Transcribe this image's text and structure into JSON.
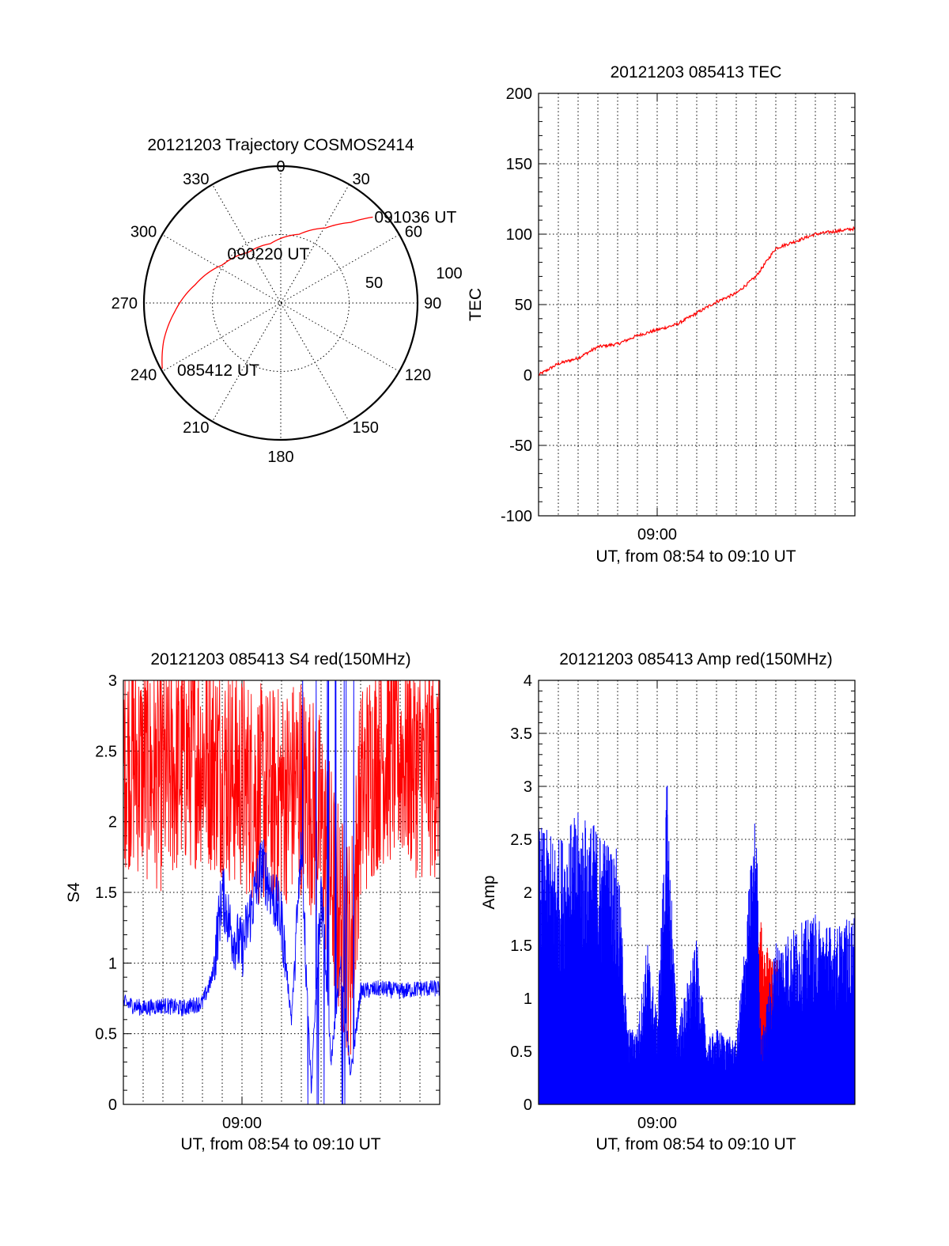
{
  "colors": {
    "red": "#ff0000",
    "blue": "#0000ff",
    "axis": "#000000",
    "background": "#ffffff"
  },
  "chart_data": [
    {
      "type": "polar",
      "title": "20121203 Trajectory COSMOS2414",
      "azimuth_labels": [
        "0",
        "30",
        "60",
        "90",
        "120",
        "150",
        "180",
        "210",
        "240",
        "270",
        "300",
        "330"
      ],
      "elevation_labels": [
        "50",
        "100"
      ],
      "series": [
        {
          "color": "red",
          "points": [
            {
              "az": 241,
              "r": 99
            },
            {
              "az": 252,
              "r": 90
            },
            {
              "az": 265,
              "r": 78
            },
            {
              "az": 282,
              "r": 64
            },
            {
              "az": 303,
              "r": 51
            },
            {
              "az": 327,
              "r": 44
            },
            {
              "az": 350,
              "r": 44
            },
            {
              "az": 15,
              "r": 52
            },
            {
              "az": 31,
              "r": 64
            },
            {
              "az": 41,
              "r": 78
            },
            {
              "az": 47,
              "r": 92
            }
          ]
        }
      ],
      "annotations": [
        {
          "text": "091036 UT",
          "az": 47,
          "r": 92
        },
        {
          "text": "090220 UT",
          "az": 353,
          "r": 36
        },
        {
          "text": "085412 UT",
          "az": 241,
          "r": 99
        }
      ]
    },
    {
      "type": "line",
      "title": "20121203 085413 TEC",
      "ylabel": "TEC",
      "xlabel": "UT, from 08:54 to 09:10 UT",
      "xlim": [
        "08:54",
        "09:10"
      ],
      "ylim": [
        -100,
        200
      ],
      "yticks": [
        "-100",
        "-50",
        "0",
        "50",
        "100",
        "150",
        "200"
      ],
      "xticks": [
        {
          "value": "09:00",
          "label": "09:00"
        }
      ],
      "grid": true,
      "series": [
        {
          "color": "red",
          "points": [
            {
              "t": "08:54:00",
              "y": 0
            },
            {
              "t": "08:55:00",
              "y": 8
            },
            {
              "t": "08:56:00",
              "y": 12
            },
            {
              "t": "08:57:00",
              "y": 20
            },
            {
              "t": "08:58:00",
              "y": 22
            },
            {
              "t": "08:59:00",
              "y": 28
            },
            {
              "t": "09:00:00",
              "y": 32
            },
            {
              "t": "09:01:00",
              "y": 36
            },
            {
              "t": "09:02:00",
              "y": 44
            },
            {
              "t": "09:03:00",
              "y": 52
            },
            {
              "t": "09:04:00",
              "y": 58
            },
            {
              "t": "09:05:00",
              "y": 70
            },
            {
              "t": "09:06:00",
              "y": 90
            },
            {
              "t": "09:07:00",
              "y": 95
            },
            {
              "t": "09:08:00",
              "y": 100
            },
            {
              "t": "09:09:00",
              "y": 102
            },
            {
              "t": "09:10:00",
              "y": 104
            }
          ]
        }
      ]
    },
    {
      "type": "line",
      "title": "20121203 085413 S4 red(150MHz)",
      "ylabel": "S4",
      "xlabel": "UT, from 08:54 to 09:10 UT",
      "xlim": [
        "08:54",
        "09:10"
      ],
      "ylim": [
        0,
        3
      ],
      "yticks": [
        "0",
        "0.5",
        "1",
        "1.5",
        "2",
        "2.5",
        "3"
      ],
      "xticks": [
        {
          "value": "09:00",
          "label": "09:00"
        }
      ],
      "grid": true,
      "series": [
        {
          "color": "red",
          "points": [
            {
              "t": "08:54:00",
              "y": 2.4
            },
            {
              "t": "08:55:00",
              "y": 2.3
            },
            {
              "t": "08:56:00",
              "y": 2.2
            },
            {
              "t": "08:57:00",
              "y": 2.35
            },
            {
              "t": "08:58:00",
              "y": 2.4
            },
            {
              "t": "08:59:00",
              "y": 2.3
            },
            {
              "t": "09:00:00",
              "y": 2.2
            },
            {
              "t": "09:01:00",
              "y": 2.1
            },
            {
              "t": "09:02:00",
              "y": 2.1
            },
            {
              "t": "09:03:00",
              "y": 2.2
            },
            {
              "t": "09:04:00",
              "y": 1.9
            },
            {
              "t": "09:05:00",
              "y": 1.2
            },
            {
              "t": "09:05:30",
              "y": 1.0
            },
            {
              "t": "09:06:00",
              "y": 2.1
            },
            {
              "t": "09:07:00",
              "y": 2.4
            },
            {
              "t": "09:08:00",
              "y": 2.4
            },
            {
              "t": "09:09:00",
              "y": 2.3
            },
            {
              "t": "09:10:00",
              "y": 2.3
            }
          ]
        },
        {
          "color": "blue",
          "points": [
            {
              "t": "08:54:00",
              "y": 0.72
            },
            {
              "t": "08:55:00",
              "y": 0.68
            },
            {
              "t": "08:56:00",
              "y": 0.7
            },
            {
              "t": "08:57:00",
              "y": 0.68
            },
            {
              "t": "08:58:00",
              "y": 0.72
            },
            {
              "t": "08:58:30",
              "y": 0.9
            },
            {
              "t": "08:59:00",
              "y": 1.5
            },
            {
              "t": "08:59:30",
              "y": 1.2
            },
            {
              "t": "09:00:00",
              "y": 1.1
            },
            {
              "t": "09:00:30",
              "y": 1.4
            },
            {
              "t": "09:01:00",
              "y": 1.7
            },
            {
              "t": "09:02:00",
              "y": 1.3
            },
            {
              "t": "09:02:30",
              "y": 0.6
            },
            {
              "t": "09:03:00",
              "y": 1.8
            },
            {
              "t": "09:03:30",
              "y": 0.1
            },
            {
              "t": "09:04:00",
              "y": 1.5
            },
            {
              "t": "09:04:30",
              "y": 0.3
            },
            {
              "t": "09:05:00",
              "y": 1.0
            },
            {
              "t": "09:05:30",
              "y": 0.2
            },
            {
              "t": "09:06:00",
              "y": 0.8
            },
            {
              "t": "09:07:00",
              "y": 0.82
            },
            {
              "t": "09:08:00",
              "y": 0.8
            },
            {
              "t": "09:09:00",
              "y": 0.82
            },
            {
              "t": "09:10:00",
              "y": 0.82
            }
          ]
        }
      ]
    },
    {
      "type": "bar",
      "title": "20121203 085413 Amp red(150MHz)",
      "ylabel": "Amp",
      "xlabel": "UT, from 08:54 to 09:10 UT",
      "xlim": [
        "08:54",
        "09:10"
      ],
      "ylim": [
        0,
        4
      ],
      "yticks": [
        "0",
        "0.5",
        "1",
        "1.5",
        "2",
        "2.5",
        "3",
        "3.5",
        "4"
      ],
      "xticks": [
        {
          "value": "09:00",
          "label": "09:00"
        }
      ],
      "grid": true,
      "series": [
        {
          "color": "red",
          "points": [
            {
              "t": "09:00:30",
              "y": 0.1
            },
            {
              "t": "09:04:45",
              "y": 1.1
            },
            {
              "t": "09:05:15",
              "y": 1.5
            },
            {
              "t": "09:05:45",
              "y": 1.2
            }
          ]
        },
        {
          "color": "blue",
          "points": [
            {
              "t": "08:54:00",
              "y": 2.2
            },
            {
              "t": "08:55:00",
              "y": 2.1
            },
            {
              "t": "08:56:00",
              "y": 2.3
            },
            {
              "t": "08:57:00",
              "y": 2.2
            },
            {
              "t": "08:58:00",
              "y": 2.0
            },
            {
              "t": "08:58:30",
              "y": 0.6
            },
            {
              "t": "08:59:00",
              "y": 0.6
            },
            {
              "t": "08:59:30",
              "y": 1.3
            },
            {
              "t": "09:00:00",
              "y": 0.7
            },
            {
              "t": "09:00:30",
              "y": 2.6
            },
            {
              "t": "09:01:00",
              "y": 0.6
            },
            {
              "t": "09:02:00",
              "y": 1.3
            },
            {
              "t": "09:02:30",
              "y": 0.5
            },
            {
              "t": "09:03:00",
              "y": 0.6
            },
            {
              "t": "09:04:00",
              "y": 0.5
            },
            {
              "t": "09:05:00",
              "y": 2.4
            },
            {
              "t": "09:05:15",
              "y": 0.5
            },
            {
              "t": "09:06:00",
              "y": 1.3
            },
            {
              "t": "09:07:00",
              "y": 1.4
            },
            {
              "t": "09:08:00",
              "y": 1.5
            },
            {
              "t": "09:09:00",
              "y": 1.4
            },
            {
              "t": "09:10:00",
              "y": 1.5
            }
          ]
        }
      ]
    }
  ]
}
